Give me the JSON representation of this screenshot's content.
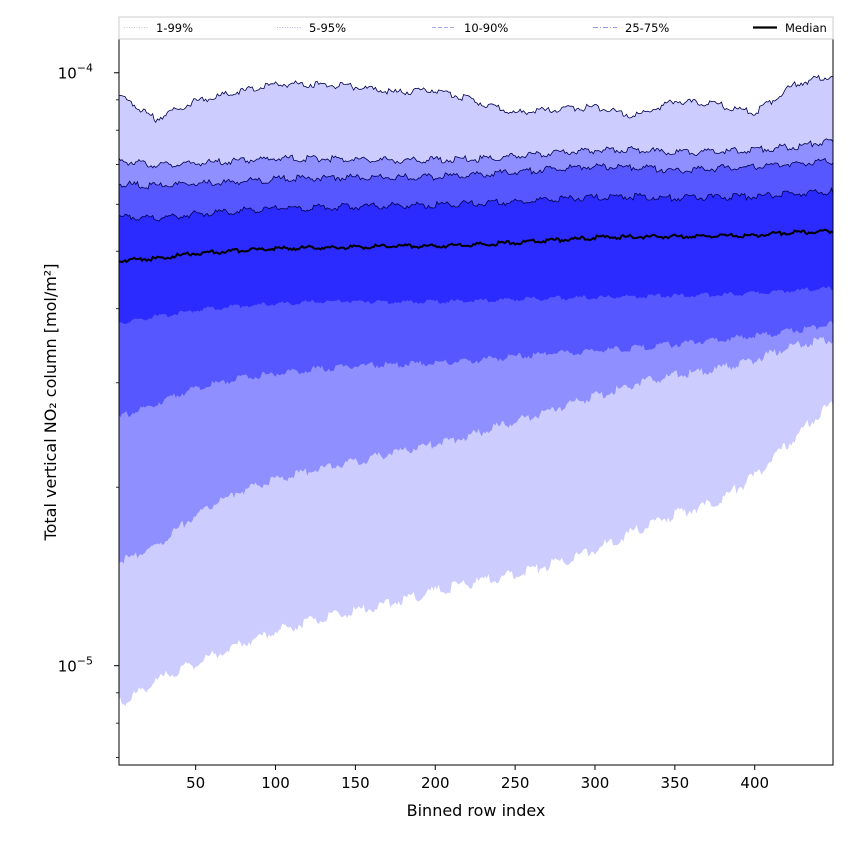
{
  "chart_data": {
    "type": "area",
    "xlabel": "Binned row index",
    "ylabel": "Total vertical NO₂ column [mol/m²]",
    "xlim": [
      2,
      449
    ],
    "ylim": [
      6.8e-06,
      0.000114
    ],
    "yscale": "log",
    "xticks": [
      "50",
      "100",
      "150",
      "200",
      "250",
      "300",
      "350",
      "400"
    ],
    "xtick_values": [
      50,
      100,
      150,
      200,
      250,
      300,
      350,
      400
    ],
    "yticks": [
      {
        "value": 1e-05,
        "base": "10",
        "exp": "−5"
      },
      {
        "value": 0.0001,
        "base": "10",
        "exp": "−4"
      }
    ],
    "legend_position": "top (above plot, single row)",
    "x": [
      2,
      25,
      50,
      75,
      100,
      125,
      150,
      175,
      200,
      225,
      250,
      275,
      300,
      325,
      350,
      375,
      400,
      425,
      449
    ],
    "bands": [
      {
        "name": "1-99%",
        "fill": "#ccccff",
        "line_color": "#bbbbbb",
        "line_style": "dotted",
        "upper": [
          9.1e-05,
          8.3e-05,
          8.9e-05,
          9.2e-05,
          9.5e-05,
          9.5e-05,
          9.4e-05,
          9.2e-05,
          9.3e-05,
          8.9e-05,
          8.5e-05,
          8.6e-05,
          8.7e-05,
          8.4e-05,
          8.9e-05,
          8.8e-05,
          8.5e-05,
          9.5e-05,
          9.85e-05
        ],
        "lower": [
          8.5e-06,
          9.3e-06,
          1e-05,
          1.07e-05,
          1.13e-05,
          1.18e-05,
          1.22e-05,
          1.27e-05,
          1.32e-05,
          1.37e-05,
          1.41e-05,
          1.47e-05,
          1.55e-05,
          1.67e-05,
          1.78e-05,
          1.86e-05,
          2.06e-05,
          2.4e-05,
          2.75e-05
        ]
      },
      {
        "name": "5-95%",
        "fill": "#8f8fff",
        "line_color": "#9999dd",
        "line_style": "dotted",
        "upper": [
          7.05e-05,
          6.95e-05,
          6.98e-05,
          7.05e-05,
          7.12e-05,
          7.12e-05,
          7.09e-05,
          7.07e-05,
          7.09e-05,
          7.1e-05,
          7.18e-05,
          7.28e-05,
          7.35e-05,
          7.37e-05,
          7.28e-05,
          7.3e-05,
          7.37e-05,
          7.45e-05,
          7.65e-05
        ],
        "lower": [
          1.48e-05,
          1.58e-05,
          1.78e-05,
          1.94e-05,
          2.04e-05,
          2.12e-05,
          2.19e-05,
          2.27e-05,
          2.34e-05,
          2.44e-05,
          2.56e-05,
          2.69e-05,
          2.82e-05,
          2.96e-05,
          3.06e-05,
          3.12e-05,
          3.25e-05,
          3.45e-05,
          3.52e-05
        ]
      },
      {
        "name": "10-90%",
        "fill": "#5757ff",
        "line_color": "#8888ee",
        "line_style": "dashed",
        "upper": [
          6.45e-05,
          6.4e-05,
          6.45e-05,
          6.5e-05,
          6.57e-05,
          6.6e-05,
          6.62e-05,
          6.62e-05,
          6.63e-05,
          6.68e-05,
          6.75e-05,
          6.85e-05,
          6.9e-05,
          6.88e-05,
          6.8e-05,
          6.85e-05,
          6.9e-05,
          6.97e-05,
          7.05e-05
        ],
        "lower": [
          2.6e-05,
          2.75e-05,
          2.92e-05,
          3.02e-05,
          3.09e-05,
          3.14e-05,
          3.18e-05,
          3.2e-05,
          3.22e-05,
          3.25e-05,
          3.3e-05,
          3.34e-05,
          3.38e-05,
          3.41e-05,
          3.46e-05,
          3.52e-05,
          3.58e-05,
          3.65e-05,
          3.75e-05
        ]
      },
      {
        "name": "25-75%",
        "fill": "#2b2bff",
        "line_color": "#7777ee",
        "line_style": "dashdot",
        "upper": [
          5.68e-05,
          5.65e-05,
          5.74e-05,
          5.81e-05,
          5.86e-05,
          5.88e-05,
          5.91e-05,
          5.93e-05,
          5.94e-05,
          5.98e-05,
          6.02e-05,
          6.08e-05,
          6.12e-05,
          6.14e-05,
          6.11e-05,
          6.12e-05,
          6.15e-05,
          6.21e-05,
          6.26e-05
        ],
        "lower": [
          3.77e-05,
          3.86e-05,
          3.96e-05,
          4.02e-05,
          4.06e-05,
          4.09e-05,
          4.1e-05,
          4.09e-05,
          4.09e-05,
          4.11e-05,
          4.13e-05,
          4.15e-05,
          4.16e-05,
          4.18e-05,
          4.19e-05,
          4.2e-05,
          4.23e-05,
          4.27e-05,
          4.31e-05
        ]
      }
    ],
    "series": [
      {
        "name": "Median",
        "color": "#000000",
        "values": [
          4.81e-05,
          4.84e-05,
          4.94e-05,
          4.99e-05,
          5.03e-05,
          5.05e-05,
          5.06e-05,
          5.08e-05,
          5.08e-05,
          5.11e-05,
          5.15e-05,
          5.2e-05,
          5.25e-05,
          5.27e-05,
          5.27e-05,
          5.28e-05,
          5.3e-05,
          5.36e-05,
          5.38e-05
        ]
      }
    ]
  }
}
